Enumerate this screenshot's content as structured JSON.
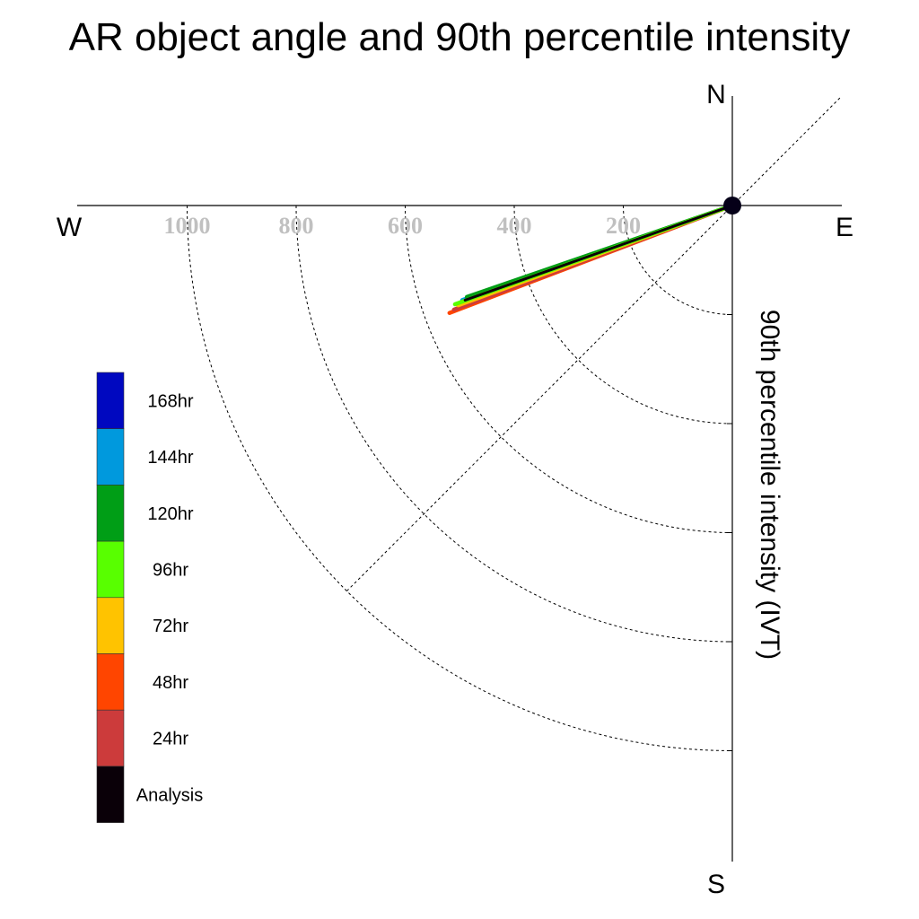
{
  "chart_data": {
    "type": "polar-vector",
    "title": "AR object angle and 90th percentile intensity",
    "radial_axis_label": "90th percentile intensity (IVT)",
    "compass_labels": {
      "north": "N",
      "south": "S",
      "east": "E",
      "west": "W"
    },
    "radial_ticks": [
      200,
      400,
      600,
      800,
      1000
    ],
    "radial_ticks_labels": [
      "200",
      "400",
      "600",
      "800",
      "1000"
    ],
    "radial_range": [
      0,
      1200
    ],
    "grid": true,
    "diagonal_guide_angle_deg": 45,
    "legend_position": "left",
    "series": [
      {
        "name": "Analysis",
        "color": "#0a0008",
        "angle_deg": 19.5,
        "intensity": 520
      },
      {
        "name": "24hr",
        "color": "#cc3b3b",
        "angle_deg": 20.5,
        "intensity": 545
      },
      {
        "name": "48hr",
        "color": "#ff4500",
        "angle_deg": 20.8,
        "intensity": 555
      },
      {
        "name": "72hr",
        "color": "#ffc300",
        "angle_deg": 20.0,
        "intensity": 535
      },
      {
        "name": "96hr",
        "color": "#58ff00",
        "angle_deg": 19.6,
        "intensity": 540
      },
      {
        "name": "120hr",
        "color": "#009e16",
        "angle_deg": 19.0,
        "intensity": 515
      },
      {
        "name": "144hr",
        "color": "#0099dd",
        "angle_deg": 19.3,
        "intensity": 525
      },
      {
        "name": "168hr",
        "color": "#0008c0",
        "angle_deg": 19.5,
        "intensity": 522
      }
    ],
    "legend_order": [
      "168hr",
      "144hr",
      "120hr",
      "96hr",
      "72hr",
      "48hr",
      "24hr",
      "Analysis"
    ]
  }
}
